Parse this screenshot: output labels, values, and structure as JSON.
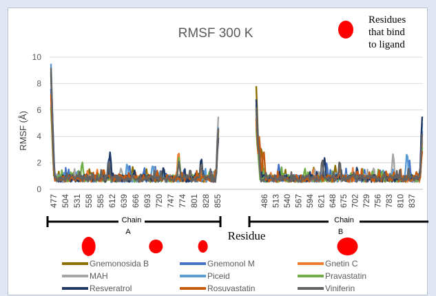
{
  "chart_data": {
    "type": "line",
    "title": "RMSF 300 K",
    "ylabel": "RMSF (Å)",
    "xlabel": "Residue",
    "ylim": [
      0,
      10
    ],
    "yticks": [
      0,
      2,
      4,
      6,
      8,
      10
    ],
    "grid": "horizontal",
    "legend_position": "bottom",
    "annotation": [
      "Residues",
      "that bind",
      "to ligand"
    ],
    "chain_a": {
      "label_line1": "Chain",
      "label_line2": "A",
      "first_residue": 477,
      "last_residue": 868,
      "tick_labels": [
        "477",
        "504",
        "531",
        "558",
        "585",
        "612",
        "639",
        "666",
        "693",
        "720",
        "747",
        "774",
        "801",
        "828",
        "855"
      ],
      "binding_sites": [
        565,
        722,
        832
      ]
    },
    "chain_b": {
      "label_line1": "Chain",
      "label_line2": "B",
      "first_residue": 468,
      "last_residue": 850,
      "tick_labels": [
        "486",
        "513",
        "540",
        "567",
        "594",
        "621",
        "648",
        "675",
        "702",
        "729",
        "756",
        "783",
        "810",
        "837"
      ],
      "binding_sites": [
        678
      ]
    },
    "series": [
      {
        "name": "Gnemonosida B",
        "color": "#8c6d00",
        "a_peaks": [
          [
            477,
            8.3
          ],
          [
            479,
            3.5
          ],
          [
            567,
            1.1
          ],
          [
            612,
            1.3
          ],
          [
            668,
            1.3
          ],
          [
            868,
            4.0
          ]
        ],
        "b_peaks": [
          [
            468,
            7.4
          ],
          [
            472,
            3.2
          ],
          [
            480,
            2.8
          ],
          [
            600,
            1.3
          ],
          [
            650,
            1.4
          ],
          [
            850,
            3.2
          ]
        ]
      },
      {
        "name": "Gnemonol M",
        "color": "#4472c4",
        "a_peaks": [
          [
            477,
            7.2
          ],
          [
            480,
            4.8
          ],
          [
            612,
            2.0
          ],
          [
            660,
            1.5
          ],
          [
            720,
            1.4
          ],
          [
            868,
            3.5
          ]
        ],
        "b_peaks": [
          [
            468,
            5.6
          ],
          [
            473,
            3.0
          ],
          [
            520,
            1.5
          ],
          [
            630,
            1.6
          ],
          [
            820,
            1.9
          ],
          [
            850,
            4.0
          ]
        ]
      },
      {
        "name": "Gnetin C",
        "color": "#ed7d31",
        "a_peaks": [
          [
            477,
            6.5
          ],
          [
            480,
            2.8
          ],
          [
            585,
            1.1
          ],
          [
            775,
            2.5
          ],
          [
            868,
            4.0
          ]
        ],
        "b_peaks": [
          [
            468,
            4.5
          ],
          [
            472,
            2.5
          ],
          [
            600,
            1.2
          ],
          [
            850,
            3.0
          ]
        ]
      },
      {
        "name": "MAH",
        "color": "#a5a5a5",
        "a_peaks": [
          [
            477,
            6.0
          ],
          [
            481,
            2.6
          ],
          [
            640,
            1.2
          ],
          [
            868,
            5.1
          ]
        ],
        "b_peaks": [
          [
            468,
            4.8
          ],
          [
            472,
            2.3
          ],
          [
            783,
            2.3
          ],
          [
            850,
            3.4
          ]
        ]
      },
      {
        "name": "Piceid",
        "color": "#5b9bd5",
        "a_peaks": [
          [
            477,
            9.1
          ],
          [
            479,
            5.8
          ],
          [
            655,
            1.6
          ],
          [
            715,
            1.5
          ],
          [
            868,
            4.3
          ]
        ],
        "b_peaks": [
          [
            468,
            6.0
          ],
          [
            474,
            3.1
          ],
          [
            815,
            2.4
          ],
          [
            850,
            4.6
          ]
        ]
      },
      {
        "name": "Pravastatin",
        "color": "#70ad47",
        "a_peaks": [
          [
            477,
            5.8
          ],
          [
            480,
            2.5
          ],
          [
            550,
            1.7
          ],
          [
            776,
            2.0
          ],
          [
            868,
            3.8
          ]
        ],
        "b_peaks": [
          [
            468,
            4.2
          ],
          [
            472,
            2.4
          ],
          [
            580,
            1.2
          ],
          [
            850,
            2.8
          ]
        ]
      },
      {
        "name": "Resveratrol",
        "color": "#1f3864",
        "a_peaks": [
          [
            477,
            8.5
          ],
          [
            480,
            4.5
          ],
          [
            615,
            2.4
          ],
          [
            740,
            1.3
          ],
          [
            828,
            2.0
          ],
          [
            868,
            3.5
          ]
        ],
        "b_peaks": [
          [
            468,
            6.4
          ],
          [
            473,
            3.4
          ],
          [
            625,
            2.0
          ],
          [
            700,
            1.3
          ],
          [
            850,
            5.1
          ]
        ]
      },
      {
        "name": "Rosuvastatin",
        "color": "#c55a11",
        "a_peaks": [
          [
            477,
            6.8
          ],
          [
            480,
            2.9
          ],
          [
            600,
            1.2
          ],
          [
            868,
            4.1
          ]
        ],
        "b_peaks": [
          [
            468,
            5.0
          ],
          [
            475,
            3.6
          ],
          [
            485,
            2.6
          ],
          [
            660,
            1.3
          ],
          [
            850,
            2.5
          ]
        ]
      },
      {
        "name": "Viniferin",
        "color": "#636363",
        "a_peaks": [
          [
            477,
            8.8
          ],
          [
            480,
            3.8
          ],
          [
            612,
            1.8
          ],
          [
            776,
            1.7
          ],
          [
            828,
            1.6
          ],
          [
            868,
            4.2
          ]
        ],
        "b_peaks": [
          [
            468,
            5.8
          ],
          [
            473,
            3.0
          ],
          [
            620,
            1.9
          ],
          [
            660,
            1.8
          ],
          [
            850,
            3.8
          ]
        ]
      }
    ]
  }
}
